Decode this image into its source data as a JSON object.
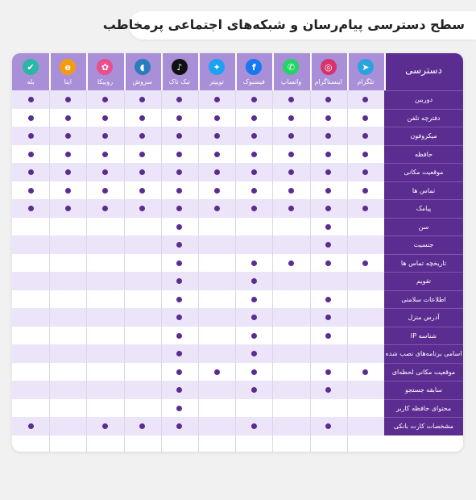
{
  "title": "سطح دسترسی پیام‌رسان و شبکه‌های اجتماعی پرمخاطب",
  "corner_label": "دسترسی",
  "apps": [
    {
      "name": "تلگرام",
      "icon": "telegram-icon",
      "color": "#2aa3df",
      "glyph": "➤"
    },
    {
      "name": "اینستاگرام",
      "icon": "instagram-icon",
      "color": "#d6336c",
      "glyph": "◎"
    },
    {
      "name": "واتساپ",
      "icon": "whatsapp-icon",
      "color": "#25d366",
      "glyph": "✆"
    },
    {
      "name": "فیسبوک",
      "icon": "facebook-icon",
      "color": "#1877f2",
      "glyph": "f"
    },
    {
      "name": "توییتر",
      "icon": "twitter-icon",
      "color": "#1da1f2",
      "glyph": "✦"
    },
    {
      "name": "تیک تاک",
      "icon": "tiktok-icon",
      "color": "#111111",
      "glyph": "♪"
    },
    {
      "name": "سروش",
      "icon": "soroush-icon",
      "color": "#2b7bbf",
      "glyph": "◖"
    },
    {
      "name": "روبیکا",
      "icon": "rubika-icon",
      "color": "#e94f8a",
      "glyph": "✿"
    },
    {
      "name": "ایتا",
      "icon": "eitaa-icon",
      "color": "#f39c12",
      "glyph": "e"
    },
    {
      "name": "بله",
      "icon": "bale-icon",
      "color": "#2bb6a6",
      "glyph": "✔"
    }
  ],
  "permissions": [
    {
      "label": "دوربین",
      "access": [
        true,
        true,
        true,
        true,
        true,
        true,
        true,
        true,
        true,
        true
      ]
    },
    {
      "label": "دفترچه تلفن",
      "access": [
        true,
        true,
        true,
        true,
        true,
        true,
        true,
        true,
        true,
        true
      ]
    },
    {
      "label": "میکروفون",
      "access": [
        true,
        true,
        true,
        true,
        true,
        true,
        true,
        true,
        true,
        true
      ]
    },
    {
      "label": "حافظه",
      "access": [
        true,
        true,
        true,
        true,
        true,
        true,
        true,
        true,
        true,
        true
      ]
    },
    {
      "label": "موقعیت مکانی",
      "access": [
        true,
        true,
        true,
        true,
        true,
        true,
        true,
        true,
        true,
        true
      ]
    },
    {
      "label": "تماس ها",
      "access": [
        true,
        true,
        true,
        true,
        true,
        true,
        true,
        true,
        true,
        true
      ]
    },
    {
      "label": "پیامک",
      "access": [
        true,
        true,
        true,
        true,
        true,
        true,
        true,
        true,
        true,
        true
      ]
    },
    {
      "label": "سن",
      "access": [
        false,
        true,
        false,
        false,
        false,
        true,
        false,
        false,
        false,
        false
      ]
    },
    {
      "label": "جنسیت",
      "access": [
        false,
        true,
        false,
        false,
        false,
        true,
        false,
        false,
        false,
        false
      ]
    },
    {
      "label": "تاریخچه تماس ها",
      "access": [
        true,
        true,
        true,
        true,
        false,
        true,
        false,
        false,
        false,
        false
      ]
    },
    {
      "label": "تقویم",
      "access": [
        false,
        false,
        false,
        true,
        false,
        true,
        false,
        false,
        false,
        false
      ]
    },
    {
      "label": "اطلاعات سلامتی",
      "access": [
        false,
        true,
        false,
        true,
        false,
        true,
        false,
        false,
        false,
        false
      ]
    },
    {
      "label": "آدرس منزل",
      "access": [
        false,
        true,
        false,
        true,
        false,
        true,
        false,
        false,
        false,
        false
      ]
    },
    {
      "label": "شناسه IP",
      "access": [
        false,
        true,
        false,
        true,
        false,
        true,
        false,
        false,
        false,
        false
      ]
    },
    {
      "label": "اسامی برنامه‌های نصب شده",
      "access": [
        false,
        false,
        false,
        true,
        false,
        true,
        false,
        false,
        false,
        false
      ]
    },
    {
      "label": "موقعیت مکانی لحظه‌ای",
      "access": [
        true,
        true,
        false,
        true,
        true,
        true,
        false,
        false,
        false,
        false
      ]
    },
    {
      "label": "سابقه جستجو",
      "access": [
        false,
        true,
        false,
        true,
        false,
        true,
        false,
        false,
        false,
        false
      ]
    },
    {
      "label": "محتوای حافظه کاربر",
      "access": [
        false,
        false,
        false,
        false,
        false,
        true,
        false,
        false,
        false,
        false
      ]
    },
    {
      "label": "مشخصات کارت بانکی",
      "access": [
        false,
        true,
        false,
        true,
        false,
        true,
        true,
        true,
        false,
        true
      ]
    }
  ],
  "colors": {
    "accent": "#5c2d91",
    "header": "#a98fd7",
    "alt_row": "#ece4f8"
  }
}
